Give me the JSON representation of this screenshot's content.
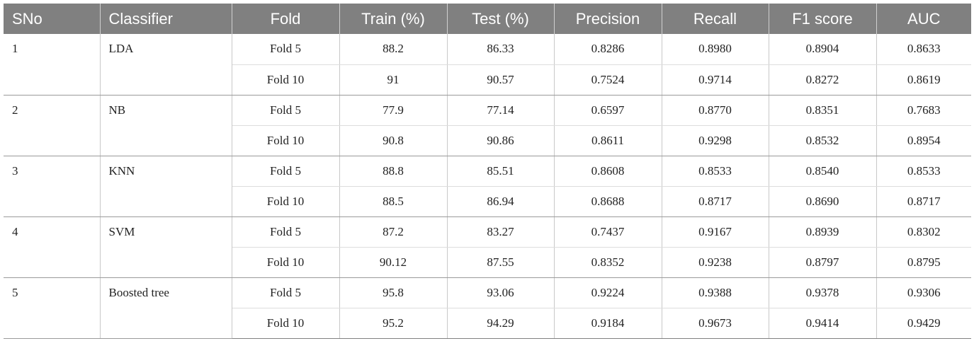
{
  "table": {
    "headers": [
      "SNo",
      "Classifier",
      "Fold",
      "Train (%)",
      "Test (%)",
      "Precision",
      "Recall",
      "F1 score",
      "AUC"
    ],
    "groups": [
      {
        "sno": "1",
        "classifier": "LDA",
        "rows": [
          {
            "fold": "Fold 5",
            "train": "88.2",
            "test": "86.33",
            "precision": "0.8286",
            "recall": "0.8980",
            "f1": "0.8904",
            "auc": "0.8633"
          },
          {
            "fold": "Fold 10",
            "train": "91",
            "test": "90.57",
            "precision": "0.7524",
            "recall": "0.9714",
            "f1": "0.8272",
            "auc": "0.8619"
          }
        ]
      },
      {
        "sno": "2",
        "classifier": "NB",
        "rows": [
          {
            "fold": "Fold 5",
            "train": "77.9",
            "test": "77.14",
            "precision": "0.6597",
            "recall": "0.8770",
            "f1": "0.8351",
            "auc": "0.7683"
          },
          {
            "fold": "Fold 10",
            "train": "90.8",
            "test": "90.86",
            "precision": "0.8611",
            "recall": "0.9298",
            "f1": "0.8532",
            "auc": "0.8954"
          }
        ]
      },
      {
        "sno": "3",
        "classifier": "KNN",
        "rows": [
          {
            "fold": "Fold 5",
            "train": "88.8",
            "test": "85.51",
            "precision": "0.8608",
            "recall": "0.8533",
            "f1": "0.8540",
            "auc": "0.8533"
          },
          {
            "fold": "Fold 10",
            "train": "88.5",
            "test": "86.94",
            "precision": "0.8688",
            "recall": "0.8717",
            "f1": "0.8690",
            "auc": "0.8717"
          }
        ]
      },
      {
        "sno": "4",
        "classifier": "SVM",
        "rows": [
          {
            "fold": "Fold 5",
            "train": "87.2",
            "test": "83.27",
            "precision": "0.7437",
            "recall": "0.9167",
            "f1": "0.8939",
            "auc": "0.8302"
          },
          {
            "fold": "Fold 10",
            "train": "90.12",
            "test": "87.55",
            "precision": "0.8352",
            "recall": "0.9238",
            "f1": "0.8797",
            "auc": "0.8795"
          }
        ]
      },
      {
        "sno": "5",
        "classifier": "Boosted tree",
        "rows": [
          {
            "fold": "Fold 5",
            "train": "95.8",
            "test": "93.06",
            "precision": "0.9224",
            "recall": "0.9388",
            "f1": "0.9378",
            "auc": "0.9306"
          },
          {
            "fold": "Fold 10",
            "train": "95.2",
            "test": "94.29",
            "precision": "0.9184",
            "recall": "0.9673",
            "f1": "0.9414",
            "auc": "0.9429"
          }
        ]
      }
    ]
  },
  "colors": {
    "header_bg": "#808080",
    "header_text": "#ffffff",
    "body_text": "#222222"
  }
}
